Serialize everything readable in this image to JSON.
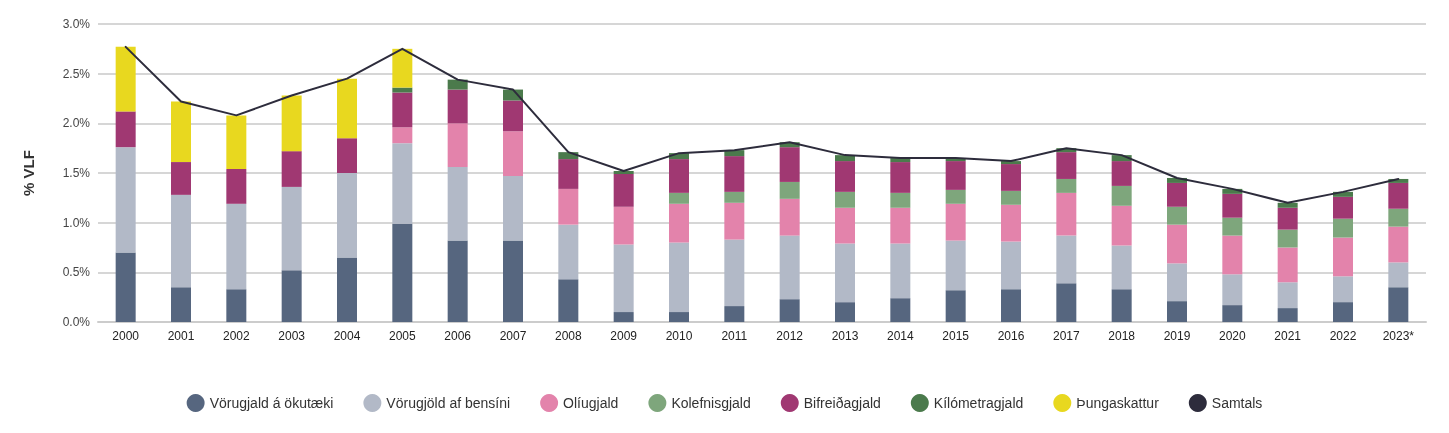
{
  "chart_data": {
    "type": "bar",
    "stacked": true,
    "ylabel": "% VLF",
    "grid": "y",
    "legend": "bottom",
    "ylim": [
      0,
      3
    ],
    "yticks": [
      {
        "value": 0,
        "label": "0.0%"
      },
      {
        "value": 0.5,
        "label": "0.5%"
      },
      {
        "value": 1,
        "label": "1.0%"
      },
      {
        "value": 1.5,
        "label": "1.5%"
      },
      {
        "value": 2,
        "label": "2.0%"
      },
      {
        "value": 2.5,
        "label": "2.5%"
      },
      {
        "value": 3,
        "label": "3.0%"
      }
    ],
    "categories": [
      "2000",
      "2001",
      "2002",
      "2003",
      "2004",
      "2005",
      "2006",
      "2007",
      "2008",
      "2009",
      "2010",
      "2011",
      "2012",
      "2013",
      "2014",
      "2015",
      "2016",
      "2017",
      "2018",
      "2019",
      "2020",
      "2021",
      "2022",
      "2023*"
    ],
    "series": [
      {
        "name": "Vörugjald á ökutæki",
        "color": "#56667f",
        "values": [
          0.7,
          0.35,
          0.33,
          0.52,
          0.65,
          0.99,
          0.82,
          0.82,
          0.43,
          0.1,
          0.1,
          0.16,
          0.23,
          0.2,
          0.24,
          0.32,
          0.33,
          0.39,
          0.33,
          0.21,
          0.17,
          0.14,
          0.2,
          0.35
        ]
      },
      {
        "name": "Vörugjöld af bensíni",
        "color": "#b2b9c7",
        "values": [
          1.06,
          0.93,
          0.86,
          0.84,
          0.85,
          0.81,
          0.74,
          0.65,
          0.55,
          0.68,
          0.7,
          0.67,
          0.64,
          0.59,
          0.55,
          0.5,
          0.48,
          0.48,
          0.44,
          0.38,
          0.31,
          0.26,
          0.26,
          0.25
        ]
      },
      {
        "name": "Olíugjald",
        "color": "#e383ab",
        "values": [
          null,
          null,
          null,
          null,
          null,
          0.16,
          0.44,
          0.45,
          0.36,
          0.38,
          0.39,
          0.37,
          0.37,
          0.36,
          0.36,
          0.37,
          0.37,
          0.43,
          0.4,
          0.39,
          0.39,
          0.35,
          0.39,
          0.36
        ]
      },
      {
        "name": "Kolefnisgjald",
        "color": "#7ea67c",
        "values": [
          null,
          null,
          null,
          null,
          null,
          null,
          null,
          null,
          null,
          null,
          0.11,
          0.11,
          0.17,
          0.16,
          0.15,
          0.14,
          0.14,
          0.14,
          0.2,
          0.18,
          0.18,
          0.18,
          0.19,
          0.18
        ]
      },
      {
        "name": "Bifreiðagjald",
        "color": "#a03872",
        "values": [
          0.36,
          0.33,
          0.35,
          0.36,
          0.35,
          0.35,
          0.34,
          0.31,
          0.3,
          0.33,
          0.34,
          0.36,
          0.35,
          0.31,
          0.31,
          0.29,
          0.27,
          0.27,
          0.25,
          0.24,
          0.24,
          0.22,
          0.22,
          0.26
        ]
      },
      {
        "name": "Kílómetragjald",
        "color": "#4b7a4c",
        "values": [
          null,
          null,
          null,
          null,
          null,
          0.05,
          0.1,
          0.11,
          0.07,
          0.03,
          0.06,
          0.06,
          0.05,
          0.06,
          0.04,
          0.03,
          0.03,
          0.04,
          0.06,
          0.05,
          0.05,
          0.05,
          0.05,
          0.04
        ]
      },
      {
        "name": "Þungaskattur",
        "color": "#e8d81f",
        "values": [
          0.65,
          0.61,
          0.54,
          0.56,
          0.6,
          0.39,
          null,
          null,
          null,
          null,
          null,
          null,
          null,
          null,
          null,
          null,
          null,
          null,
          null,
          null,
          null,
          null,
          null,
          null
        ]
      },
      {
        "name": "Samtals",
        "type": "line",
        "color": "#2d2c3c",
        "marker": "none",
        "line_style": "solid",
        "values": [
          2.77,
          2.22,
          2.08,
          2.28,
          2.45,
          2.75,
          2.44,
          2.34,
          1.71,
          1.52,
          1.7,
          1.73,
          1.81,
          1.68,
          1.65,
          1.65,
          1.62,
          1.75,
          1.68,
          1.45,
          1.34,
          1.2,
          1.31,
          1.44
        ]
      }
    ]
  }
}
